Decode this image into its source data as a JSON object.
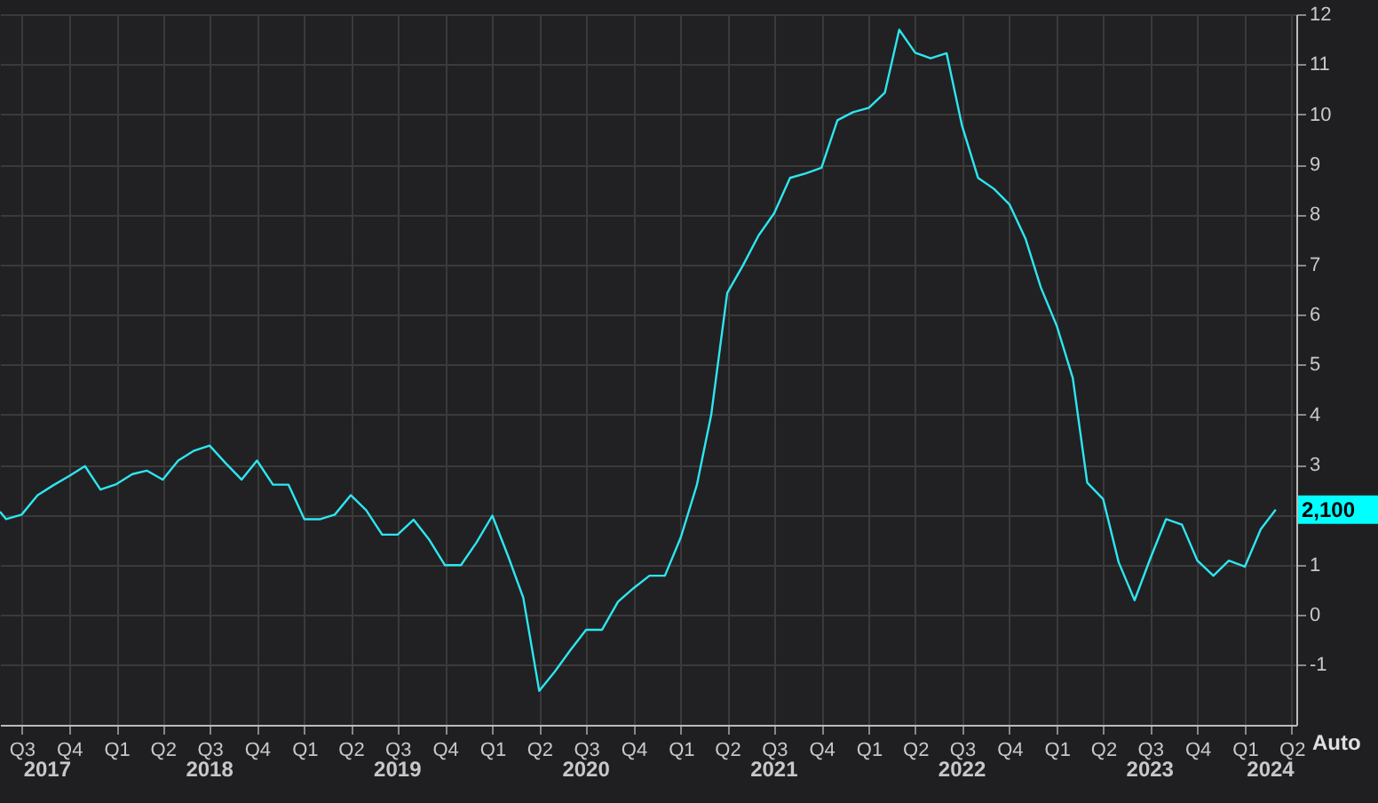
{
  "chart_data": {
    "type": "line",
    "x": [
      "2017-05-20",
      "2017-06",
      "2017-07",
      "2017-08",
      "2017-09",
      "2017-10",
      "2017-11",
      "2017-12",
      "2018-01",
      "2018-02",
      "2018-03",
      "2018-04",
      "2018-05",
      "2018-06",
      "2018-07",
      "2018-08",
      "2018-09",
      "2018-10",
      "2018-11",
      "2018-12",
      "2019-01",
      "2019-02",
      "2019-03",
      "2019-04",
      "2019-05",
      "2019-06",
      "2019-07",
      "2019-08",
      "2019-09",
      "2019-10",
      "2019-11",
      "2019-12",
      "2020-01",
      "2020-02",
      "2020-03",
      "2020-04",
      "2020-05",
      "2020-06",
      "2020-07",
      "2020-08",
      "2020-09",
      "2020-10",
      "2020-11",
      "2020-12",
      "2021-01",
      "2021-02",
      "2021-03",
      "2021-04",
      "2021-05",
      "2021-06",
      "2021-07",
      "2021-08",
      "2021-09",
      "2021-10",
      "2021-11",
      "2021-12",
      "2022-01",
      "2022-02",
      "2022-03",
      "2022-04",
      "2022-05",
      "2022-06",
      "2022-07",
      "2022-08",
      "2022-09",
      "2022-10",
      "2022-11",
      "2022-12",
      "2023-01",
      "2023-02",
      "2023-03",
      "2023-04",
      "2023-05",
      "2023-06",
      "2023-07",
      "2023-08",
      "2023-09",
      "2023-10",
      "2023-11",
      "2023-12",
      "2024-01",
      "2024-02",
      "2024-03"
    ],
    "series": [
      {
        "color": "#2ee6f0",
        "values": [
          2.06,
          1.91,
          2.0,
          2.39,
          2.59,
          2.77,
          2.97,
          2.5,
          2.61,
          2.81,
          2.88,
          2.7,
          3.08,
          3.28,
          3.38,
          3.03,
          2.7,
          3.08,
          2.6,
          2.6,
          1.91,
          1.91,
          2.0,
          2.39,
          2.09,
          1.6,
          1.6,
          1.9,
          1.49,
          0.99,
          0.99,
          1.44,
          1.98,
          1.16,
          0.34,
          -1.52,
          -1.14,
          -0.7,
          -0.3,
          -0.3,
          0.26,
          0.53,
          0.78,
          0.78,
          1.55,
          2.59,
          4.0,
          6.43,
          6.97,
          7.58,
          8.02,
          8.73,
          8.82,
          8.93,
          9.88,
          10.04,
          10.13,
          10.43,
          11.69,
          11.23,
          11.12,
          11.22,
          9.77,
          8.73,
          8.51,
          8.2,
          7.52,
          6.54,
          5.77,
          4.73,
          2.64,
          2.31,
          1.05,
          0.29,
          1.11,
          1.91,
          1.8,
          1.08,
          0.78,
          1.08,
          0.96,
          1.71,
          2.1
        ]
      }
    ],
    "xlim": [
      "2017-05-20",
      "2024-04-10"
    ],
    "xticks": [
      {
        "value": "2017-07",
        "label": "Q3"
      },
      {
        "value": "2017-10",
        "label": "Q4"
      },
      {
        "value": "2018-01",
        "label": "Q1"
      },
      {
        "value": "2018-04",
        "label": "Q2"
      },
      {
        "value": "2018-07",
        "label": "Q3"
      },
      {
        "value": "2018-10",
        "label": "Q4"
      },
      {
        "value": "2019-01",
        "label": "Q1"
      },
      {
        "value": "2019-04",
        "label": "Q2"
      },
      {
        "value": "2019-07",
        "label": "Q3"
      },
      {
        "value": "2019-10",
        "label": "Q4"
      },
      {
        "value": "2020-01",
        "label": "Q1"
      },
      {
        "value": "2020-04",
        "label": "Q2"
      },
      {
        "value": "2020-07",
        "label": "Q3"
      },
      {
        "value": "2020-10",
        "label": "Q4"
      },
      {
        "value": "2021-01",
        "label": "Q1"
      },
      {
        "value": "2021-04",
        "label": "Q2"
      },
      {
        "value": "2021-07",
        "label": "Q3"
      },
      {
        "value": "2021-10",
        "label": "Q4"
      },
      {
        "value": "2022-01",
        "label": "Q1"
      },
      {
        "value": "2022-04",
        "label": "Q2"
      },
      {
        "value": "2022-07",
        "label": "Q3"
      },
      {
        "value": "2022-10",
        "label": "Q4"
      },
      {
        "value": "2023-01",
        "label": "Q1"
      },
      {
        "value": "2023-04",
        "label": "Q2"
      },
      {
        "value": "2023-07",
        "label": "Q3"
      },
      {
        "value": "2023-10",
        "label": "Q4"
      },
      {
        "value": "2024-01",
        "label": "Q1"
      },
      {
        "value": "2024-04",
        "label": "Q2"
      }
    ],
    "x2lim": [
      "2017-05-20",
      "2024-04-10"
    ],
    "x2ticks": [
      {
        "value": "2017-08-20",
        "label": "2017"
      },
      {
        "value": "2018-07",
        "label": "2018"
      },
      {
        "value": "2019-07",
        "label": "2019"
      },
      {
        "value": "2020-07",
        "label": "2020"
      },
      {
        "value": "2021-07",
        "label": "2021"
      },
      {
        "value": "2022-07",
        "label": "2022"
      },
      {
        "value": "2023-07",
        "label": "2023"
      },
      {
        "value": "2024-02-20",
        "label": "2024"
      }
    ],
    "ylim": [
      -2.2,
      12
    ],
    "yticks": [
      -1,
      0,
      1,
      {
        "value": 2,
        "label": null
      },
      3,
      4,
      5,
      6,
      7,
      8,
      9,
      10,
      11,
      12
    ],
    "grid": true,
    "annotations": [
      "2,100",
      "Auto"
    ]
  }
}
